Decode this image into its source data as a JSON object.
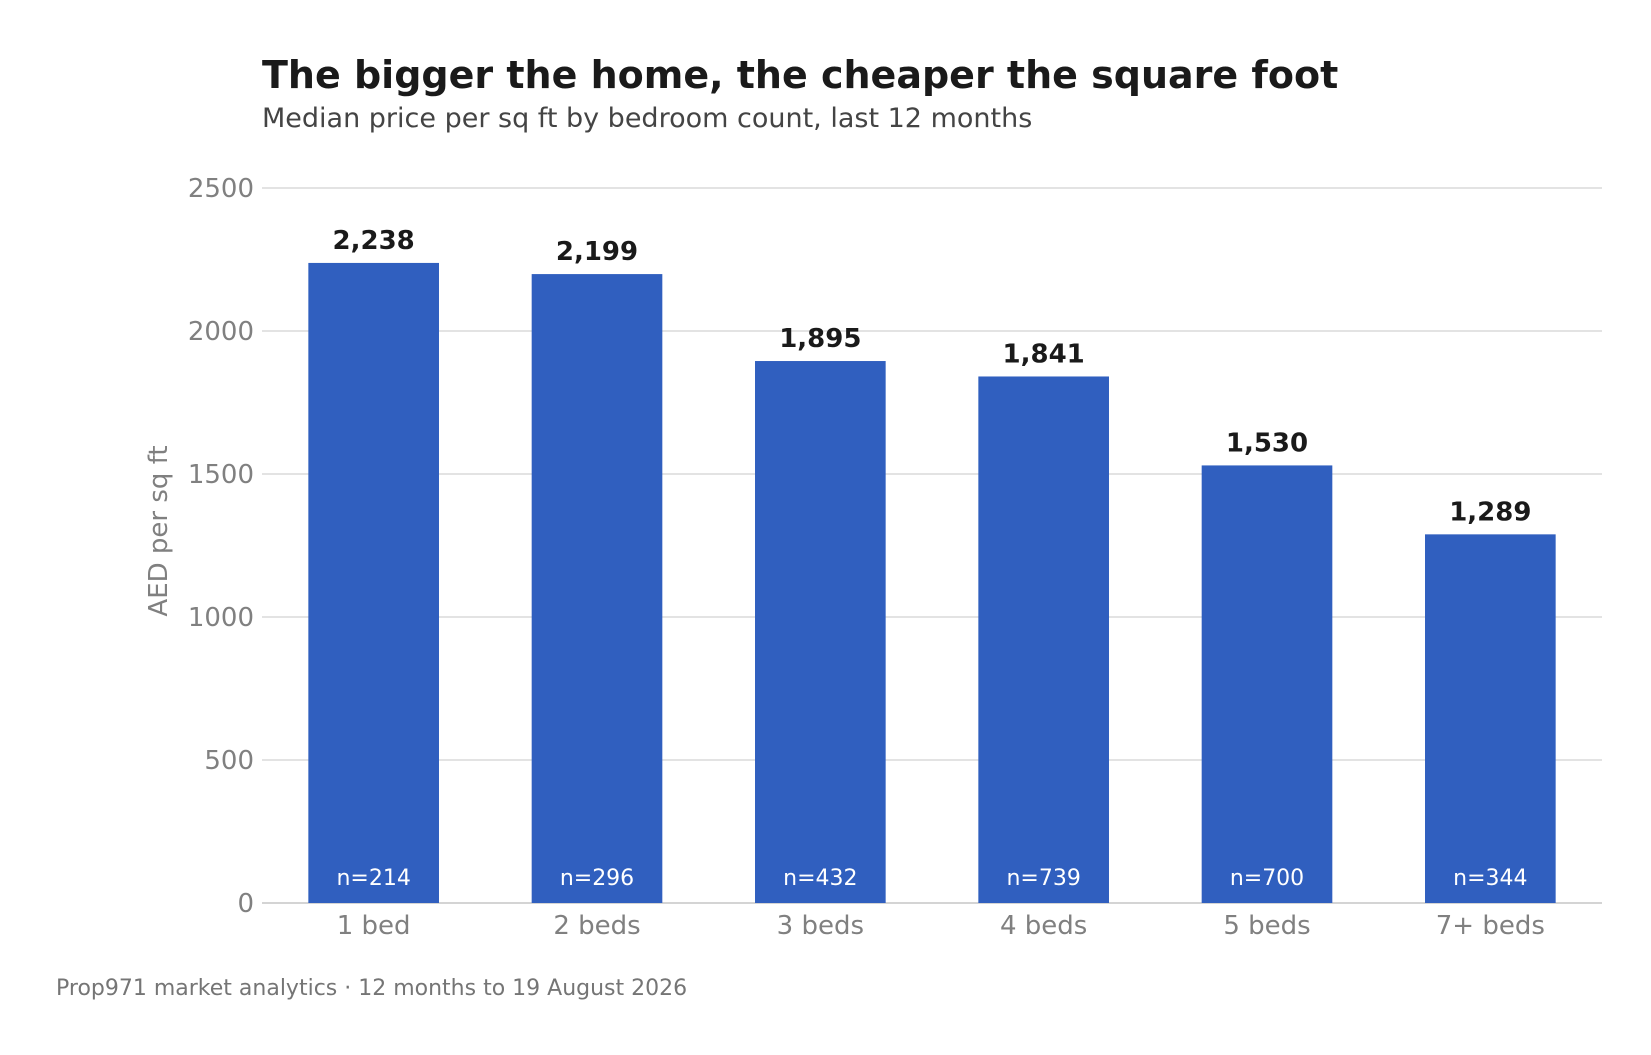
{
  "chart_data": {
    "type": "bar",
    "title": "The bigger the home, the cheaper the square foot",
    "subtitle": "Median price per sq ft by bedroom count, last 12 months",
    "xlabel": "",
    "ylabel": "AED per sq ft",
    "ylim": [
      0,
      2500
    ],
    "yticks": [
      "0",
      "500",
      "1000",
      "1500",
      "2000",
      "2500"
    ],
    "grid": true,
    "legend": "none",
    "bar_color": "#305fbf",
    "categories": [
      "1 bed",
      "2 beds",
      "3 beds",
      "4 beds",
      "5 beds",
      "7+ beds"
    ],
    "values": [
      2238,
      2199,
      1895,
      1841,
      1530,
      1289
    ],
    "value_labels": [
      "2,238",
      "2,199",
      "1,895",
      "1,841",
      "1,530",
      "1,289"
    ],
    "sample_labels": [
      "n=214",
      "n=296",
      "n=432",
      "n=739",
      "n=700",
      "n=344"
    ],
    "source": "Prop971 market analytics · 12 months to 19 August 2026"
  }
}
